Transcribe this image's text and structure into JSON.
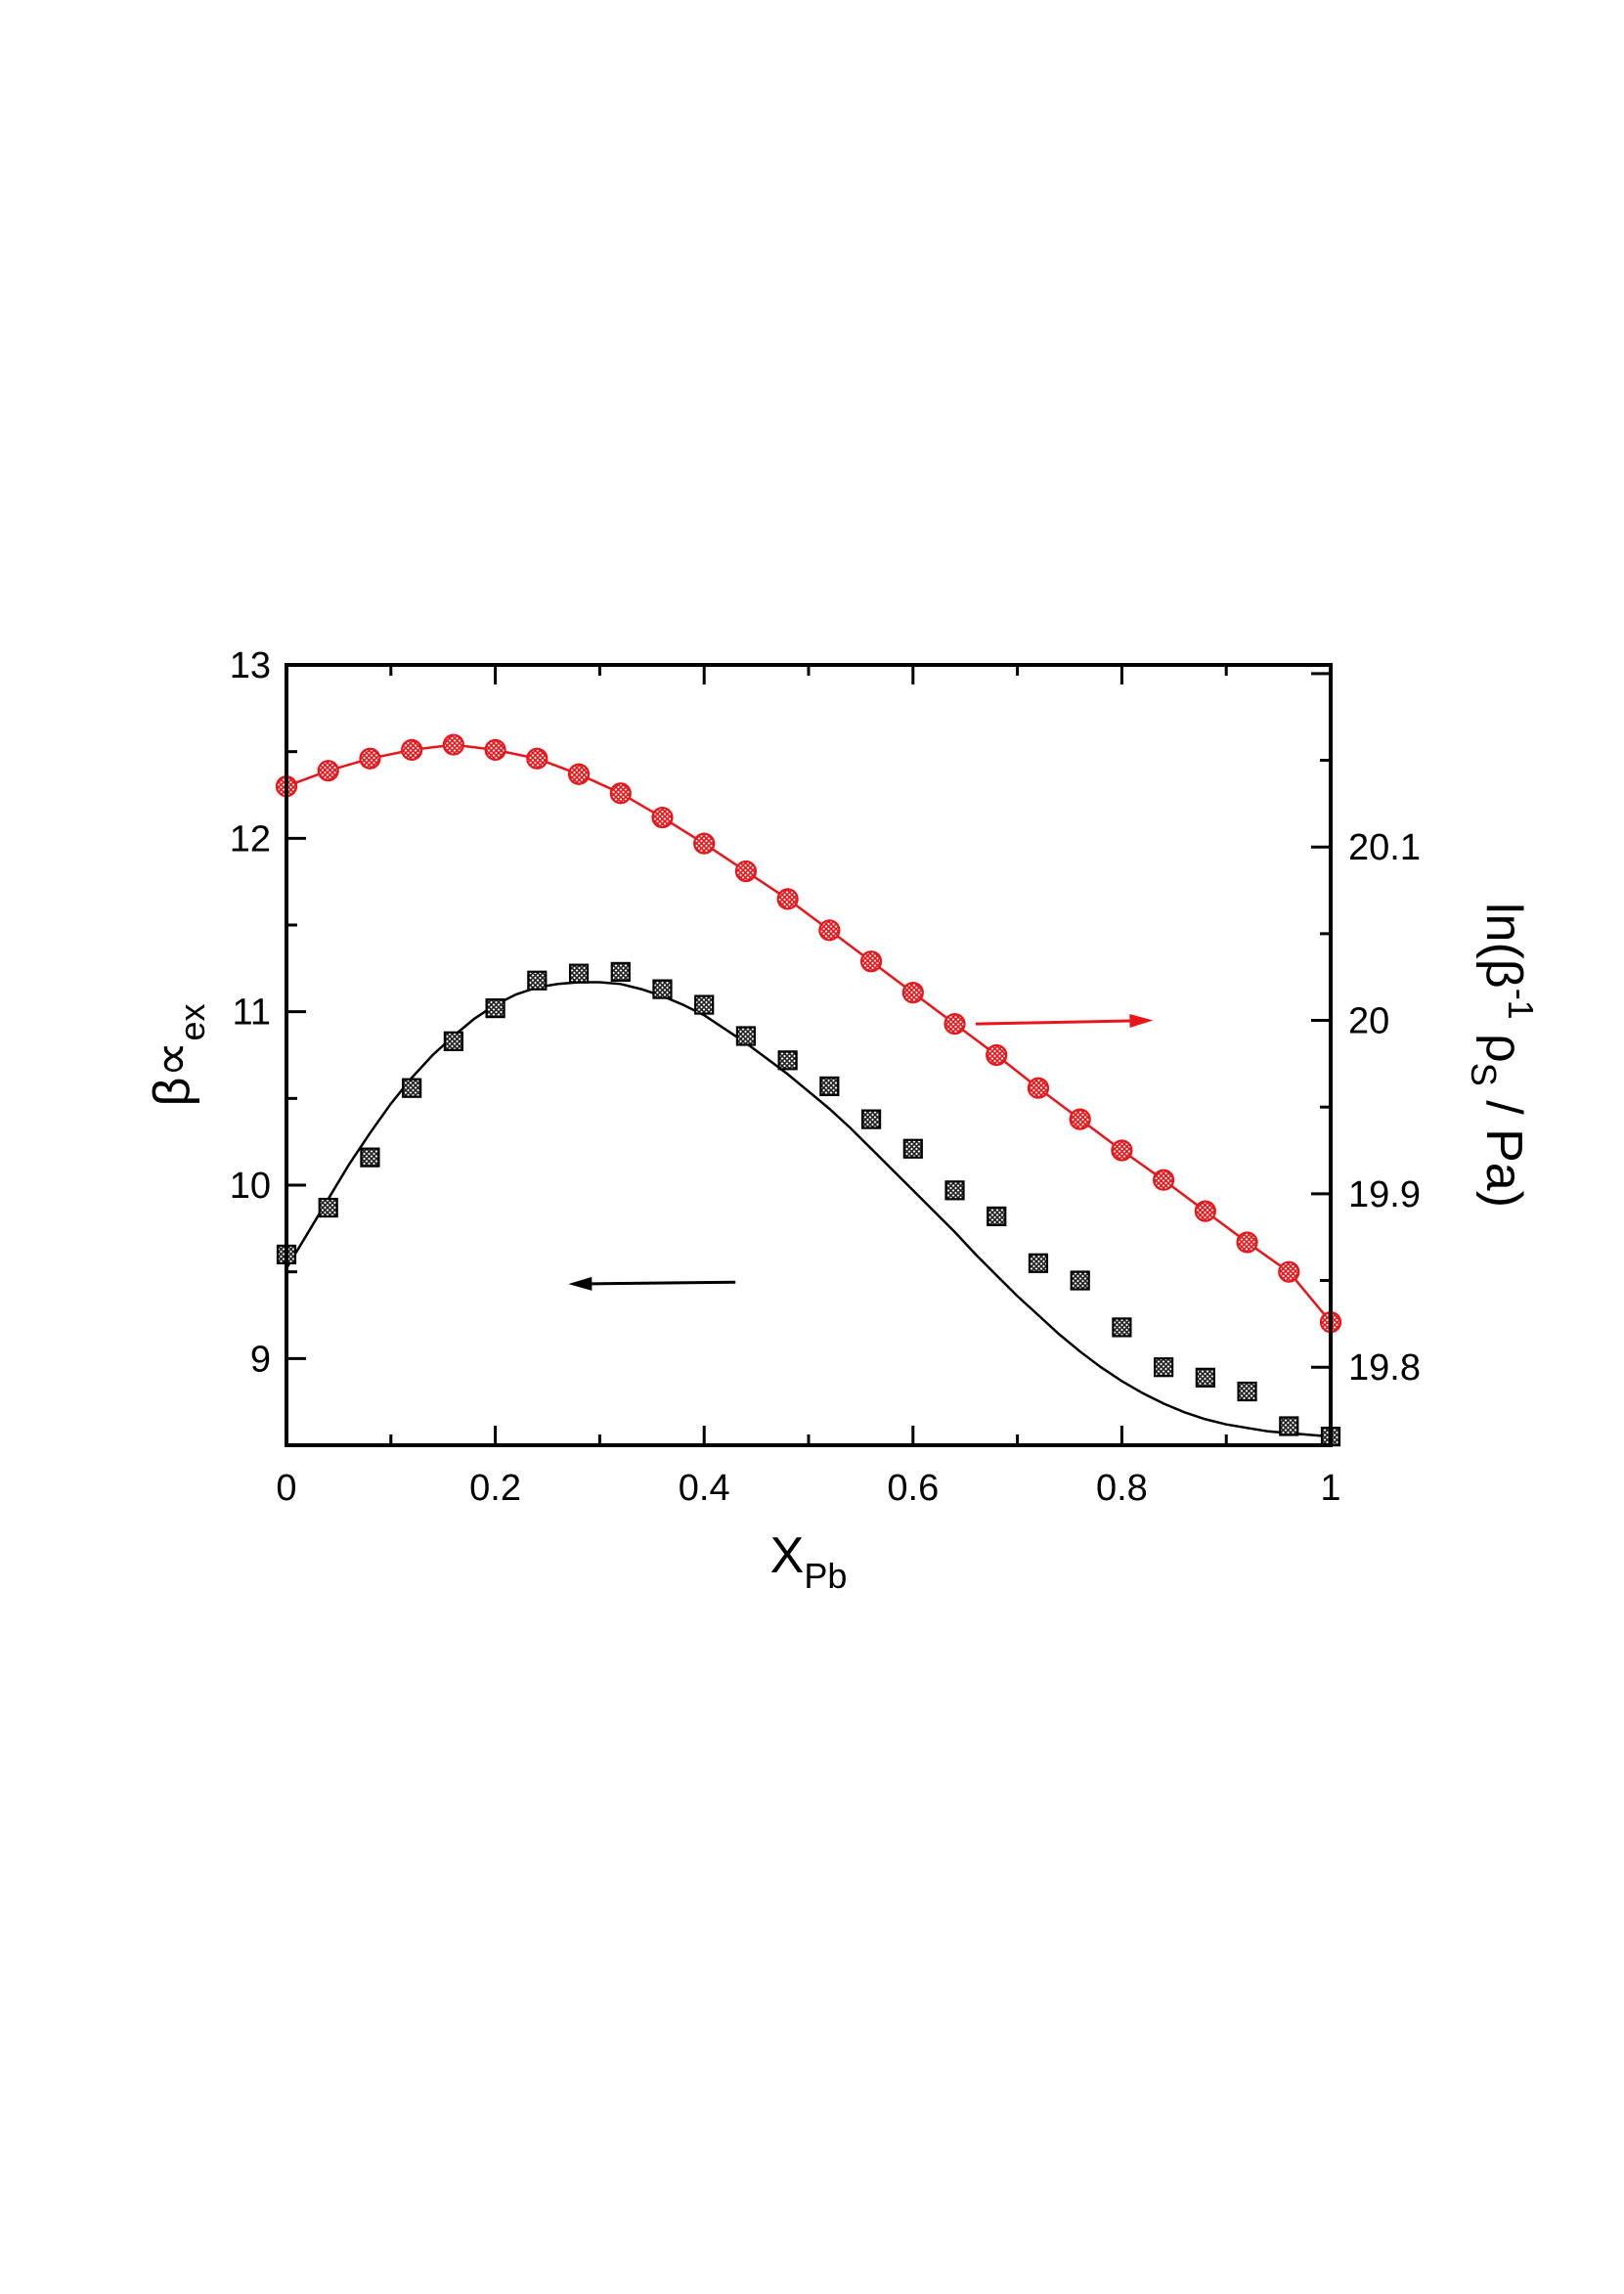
{
  "chart_data": {
    "type": "scatter",
    "x_axis": {
      "label_main": "X",
      "label_sub": "Pb",
      "range": [
        0,
        1
      ],
      "ticks": [
        0,
        0.2,
        0.4,
        0.6,
        0.8,
        1
      ],
      "tick_labels": [
        "0",
        "0.2",
        "0.4",
        "0.6",
        "0.8",
        "1"
      ]
    },
    "y_axis_left": {
      "label_main": "β∝",
      "label_sub": "ex",
      "range": [
        8.5,
        13
      ],
      "ticks": [
        9,
        10,
        11,
        12,
        13
      ],
      "tick_labels": [
        "9",
        "10",
        "11",
        "12",
        "13"
      ]
    },
    "y_axis_right": {
      "label_pre": "ln(β",
      "label_sup": "-1",
      "label_mid": " ρ",
      "label_sub": "S",
      "label_post": " / Pa)",
      "range": [
        19.755,
        20.205
      ],
      "ticks": [
        19.8,
        19.9,
        20,
        20.1
      ],
      "tick_labels": [
        "19.8",
        "19.9",
        "20",
        "20.1"
      ]
    },
    "grid": false,
    "series": [
      {
        "axis": "left",
        "color": "#000000",
        "marker": "square",
        "x": [
          0,
          0.04,
          0.08,
          0.12,
          0.16,
          0.2,
          0.24,
          0.28,
          0.32,
          0.36,
          0.4,
          0.44,
          0.48,
          0.52,
          0.56,
          0.6,
          0.64,
          0.68,
          0.72,
          0.76,
          0.8,
          0.84,
          0.88,
          0.92,
          0.96,
          1.0
        ],
        "y": [
          9.6,
          9.87,
          10.16,
          10.56,
          10.83,
          11.02,
          11.18,
          11.22,
          11.23,
          11.13,
          11.04,
          10.86,
          10.72,
          10.57,
          10.38,
          10.21,
          9.97,
          9.82,
          9.55,
          9.45,
          9.18,
          8.95,
          8.89,
          8.81,
          8.61,
          8.55
        ],
        "fit_x": [
          0,
          0.02,
          0.04,
          0.06,
          0.08,
          0.1,
          0.12,
          0.14,
          0.16,
          0.18,
          0.2,
          0.22,
          0.24,
          0.26,
          0.28,
          0.3,
          0.32,
          0.34,
          0.36,
          0.38,
          0.4,
          0.42,
          0.44,
          0.46,
          0.48,
          0.5,
          0.52,
          0.54,
          0.56,
          0.58,
          0.6,
          0.62,
          0.64,
          0.66,
          0.68,
          0.7,
          0.72,
          0.74,
          0.76,
          0.78,
          0.8,
          0.82,
          0.84,
          0.86,
          0.88,
          0.9,
          0.92,
          0.94,
          0.96,
          0.98,
          1.0
        ],
        "fit_y": [
          9.52,
          9.72,
          9.92,
          10.12,
          10.3,
          10.47,
          10.62,
          10.75,
          10.86,
          10.96,
          11.04,
          11.1,
          11.14,
          11.16,
          11.17,
          11.17,
          11.16,
          11.13,
          11.09,
          11.04,
          10.98,
          10.9,
          10.82,
          10.73,
          10.64,
          10.54,
          10.44,
          10.33,
          10.21,
          10.09,
          9.97,
          9.85,
          9.73,
          9.6,
          9.48,
          9.36,
          9.25,
          9.14,
          9.04,
          8.95,
          8.87,
          8.8,
          8.74,
          8.69,
          8.65,
          8.62,
          8.6,
          8.58,
          8.57,
          8.56,
          8.55
        ]
      },
      {
        "axis": "right",
        "color": "#e8161a",
        "marker": "circle",
        "x": [
          0,
          0.04,
          0.08,
          0.12,
          0.16,
          0.2,
          0.24,
          0.28,
          0.32,
          0.36,
          0.4,
          0.44,
          0.48,
          0.52,
          0.56,
          0.6,
          0.64,
          0.68,
          0.72,
          0.76,
          0.8,
          0.84,
          0.88,
          0.92,
          0.96,
          1.0
        ],
        "y": [
          20.135,
          20.144,
          20.151,
          20.156,
          20.159,
          20.156,
          20.151,
          20.142,
          20.131,
          20.117,
          20.102,
          20.086,
          20.07,
          20.052,
          20.034,
          20.016,
          19.998,
          19.98,
          19.961,
          19.943,
          19.925,
          19.908,
          19.89,
          19.872,
          19.855,
          19.826
        ],
        "fit_x": [
          0,
          0.04,
          0.08,
          0.12,
          0.16,
          0.2,
          0.24,
          0.28,
          0.32,
          0.36,
          0.4,
          0.44,
          0.48,
          0.52,
          0.56,
          0.6,
          0.64,
          0.68,
          0.72,
          0.76,
          0.8,
          0.84,
          0.88,
          0.92,
          0.96,
          1.0
        ],
        "fit_y": [
          20.135,
          20.144,
          20.151,
          20.156,
          20.159,
          20.156,
          20.151,
          20.142,
          20.131,
          20.117,
          20.102,
          20.086,
          20.07,
          20.052,
          20.034,
          20.016,
          19.998,
          19.98,
          19.961,
          19.943,
          19.925,
          19.908,
          19.89,
          19.872,
          19.855,
          19.826
        ]
      }
    ],
    "annotations": [
      {
        "type": "arrow",
        "color": "#e8161a",
        "direction": "right",
        "points_to": "y_axis_right",
        "from": [
          0.66,
          19.998
        ],
        "to": [
          0.83,
          20.0
        ]
      },
      {
        "type": "arrow",
        "color": "#000000",
        "direction": "left",
        "points_to": "y_axis_left",
        "from": [
          0.43,
          9.44
        ],
        "to": [
          0.27,
          9.43
        ]
      }
    ]
  }
}
